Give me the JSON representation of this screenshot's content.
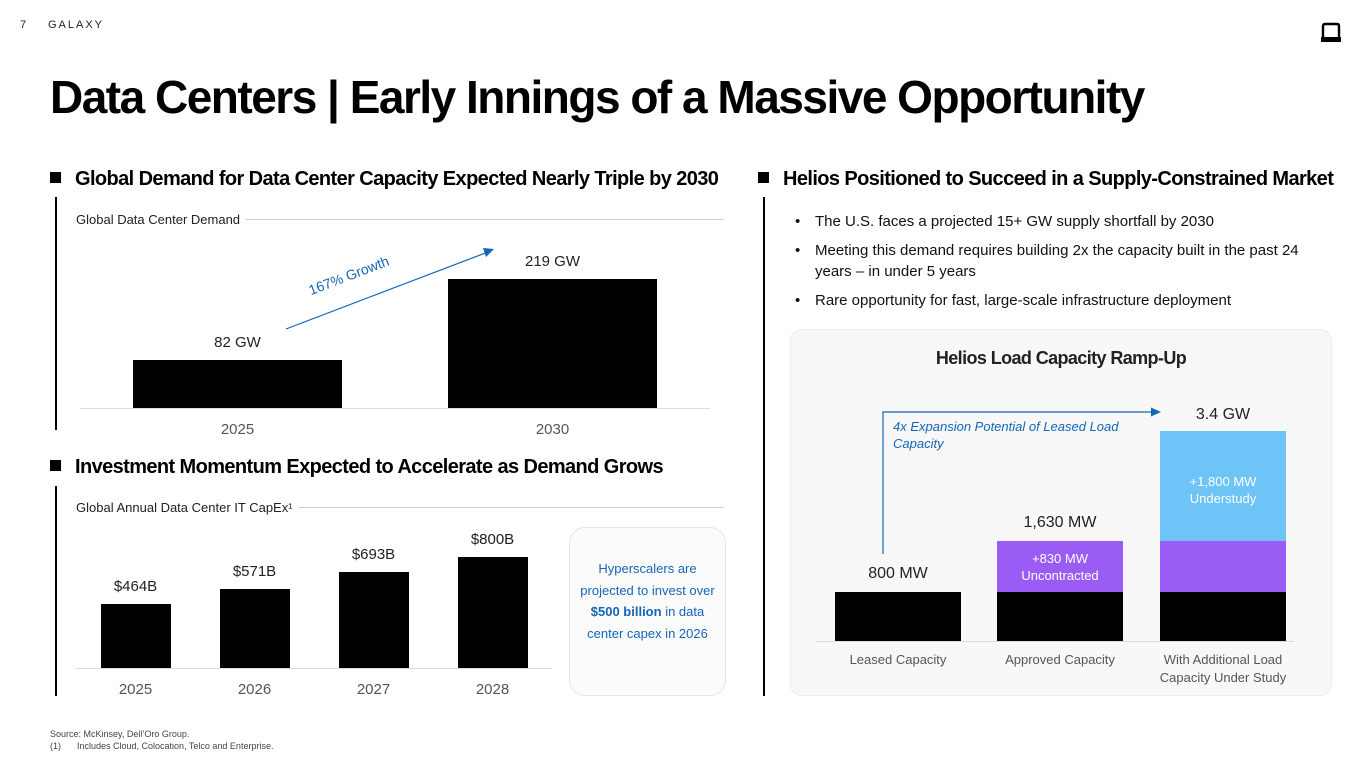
{
  "header": {
    "page_number": "7",
    "brand": "GALAXY",
    "title": "Data Centers | Early Innings of a Massive Opportunity"
  },
  "icons": {
    "logo": "galaxy-logo-icon"
  },
  "colors": {
    "bar": "#000000",
    "accent_blue": "#1565b8",
    "purple": "#9b5cf6",
    "light_blue": "#6ec3f7"
  },
  "demand": {
    "heading": "Global Demand for Data Center Capacity Expected Nearly Triple by 2030",
    "subtitle": "Global Data Center Demand",
    "growth_label": "167% Growth",
    "chart_data": {
      "type": "bar",
      "categories": [
        "2025",
        "2030"
      ],
      "values": [
        82,
        219
      ],
      "value_labels": [
        "82 GW",
        "219 GW"
      ],
      "ylim": [
        0,
        230
      ]
    }
  },
  "capex": {
    "heading": "Investment Momentum Expected to Accelerate as Demand Grows",
    "subtitle": "Global Annual Data Center IT CapEx¹",
    "chart_data": {
      "type": "bar",
      "categories": [
        "2025",
        "2026",
        "2027",
        "2028"
      ],
      "values": [
        464,
        571,
        693,
        800
      ],
      "value_labels": [
        "$464B",
        "$571B",
        "$693B",
        "$800B"
      ],
      "ylim": [
        0,
        900
      ]
    },
    "callout": {
      "text_before": "Hyperscalers are projected to invest over ",
      "highlight": "$500 billion",
      "text_after": " in data center capex in 2026"
    }
  },
  "helios": {
    "heading": "Helios Positioned to Succeed in a Supply-Constrained Market",
    "bullets": [
      "The U.S. faces a projected 15+ GW supply shortfall by 2030",
      "Meeting this demand requires building 2x the capacity built in the past 24 years – in under 5 years",
      "Rare opportunity for fast, large-scale infrastructure deployment"
    ],
    "chart_title": "Helios Load Capacity Ramp-Up",
    "expansion_note": "4x Expansion Potential of Leased Load Capacity",
    "chart_data": {
      "type": "bar",
      "stacked": true,
      "categories": [
        "Leased Capacity",
        "Approved Capacity",
        "With Additional Load Capacity Under Study"
      ],
      "totals": [
        800,
        1630,
        3400
      ],
      "total_labels": [
        "800 MW",
        "1,630 MW",
        "3.4 GW"
      ],
      "series": [
        {
          "values": [
            800,
            800,
            800
          ]
        },
        {
          "name": "+830 MW Uncontracted",
          "values": [
            0,
            830,
            830
          ]
        },
        {
          "name": "+1,800 MW Understudy",
          "values": [
            0,
            0,
            1800
          ]
        }
      ],
      "segment_labels": {
        "uncontracted": [
          "+830 MW",
          "Uncontracted"
        ],
        "understudy": [
          "+1,800 MW",
          "Understudy"
        ]
      },
      "ylim": [
        0,
        3400
      ]
    }
  },
  "footer": {
    "source": "Source: McKinsey, Dell’Oro Group.",
    "note_number": "(1)",
    "note_text": "Includes Cloud, Colocation, Telco and Enterprise."
  }
}
